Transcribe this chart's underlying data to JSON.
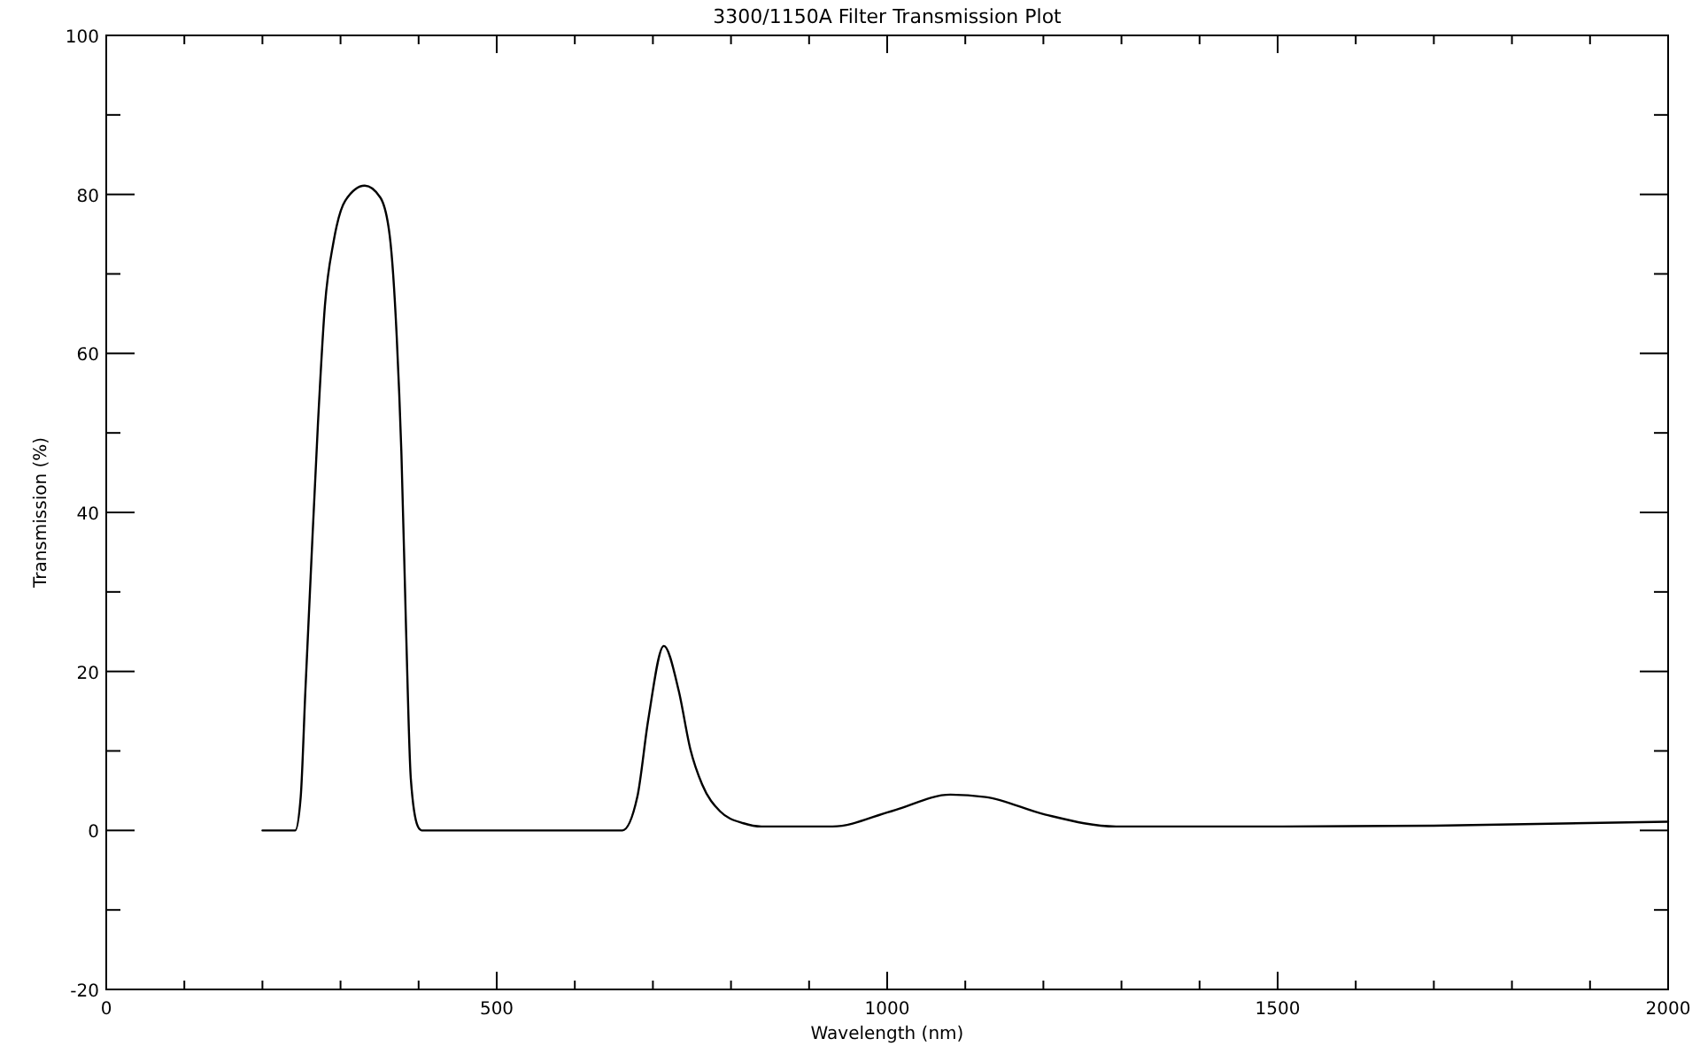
{
  "chart_data": {
    "type": "line",
    "title": "3300/1150A Filter Transmission Plot",
    "xlabel": "Wavelength (nm)",
    "ylabel": "Transmission (%)",
    "xlim": [
      0,
      2000
    ],
    "ylim": [
      -20,
      100
    ],
    "xticks": [
      0,
      {
        "value": 100,
        "label": null
      },
      {
        "value": 200,
        "label": null
      },
      {
        "value": 300,
        "label": null
      },
      {
        "value": 400,
        "label": null
      },
      500,
      {
        "value": 600,
        "label": null
      },
      {
        "value": 700,
        "label": null
      },
      {
        "value": 800,
        "label": null
      },
      {
        "value": 900,
        "label": null
      },
      1000,
      {
        "value": 1100,
        "label": null
      },
      {
        "value": 1200,
        "label": null
      },
      {
        "value": 1300,
        "label": null
      },
      {
        "value": 1400,
        "label": null
      },
      1500,
      {
        "value": 1600,
        "label": null
      },
      {
        "value": 1700,
        "label": null
      },
      {
        "value": 1800,
        "label": null
      },
      {
        "value": 1900,
        "label": null
      },
      2000
    ],
    "yticks": [
      -20,
      {
        "value": -10,
        "label": null
      },
      0,
      {
        "value": 10,
        "label": null
      },
      20,
      {
        "value": 30,
        "label": null
      },
      40,
      {
        "value": 50,
        "label": null
      },
      60,
      {
        "value": 70,
        "label": null
      },
      80,
      {
        "value": 90,
        "label": null
      },
      100
    ],
    "grid": false,
    "marker": "none",
    "line_style": "solid",
    "series": [
      {
        "color": "#000000",
        "x": [
          200,
          242,
          249,
          255,
          262,
          271,
          280,
          291,
          306,
          331,
          351,
          363,
          372,
          378,
          384,
          390,
          399,
          404,
          661,
          680,
          694,
          714,
          733,
          748,
          763,
          786,
          816,
          839,
          930,
          1005,
          1081,
          1126,
          1202,
          1293,
          1500,
          1700,
          2000
        ],
        "values": [
          0,
          0,
          4.2,
          17.6,
          32.5,
          51,
          66,
          74,
          79.2,
          81.1,
          79.6,
          74.8,
          62,
          47.3,
          25,
          6.5,
          0.5,
          0,
          0,
          4.2,
          13.9,
          23.2,
          17.6,
          10.2,
          5.8,
          2.4,
          0.9,
          0.5,
          0.5,
          2.4,
          4.5,
          4.2,
          2,
          0.5,
          0.5,
          0.6,
          1.1
        ]
      }
    ]
  }
}
